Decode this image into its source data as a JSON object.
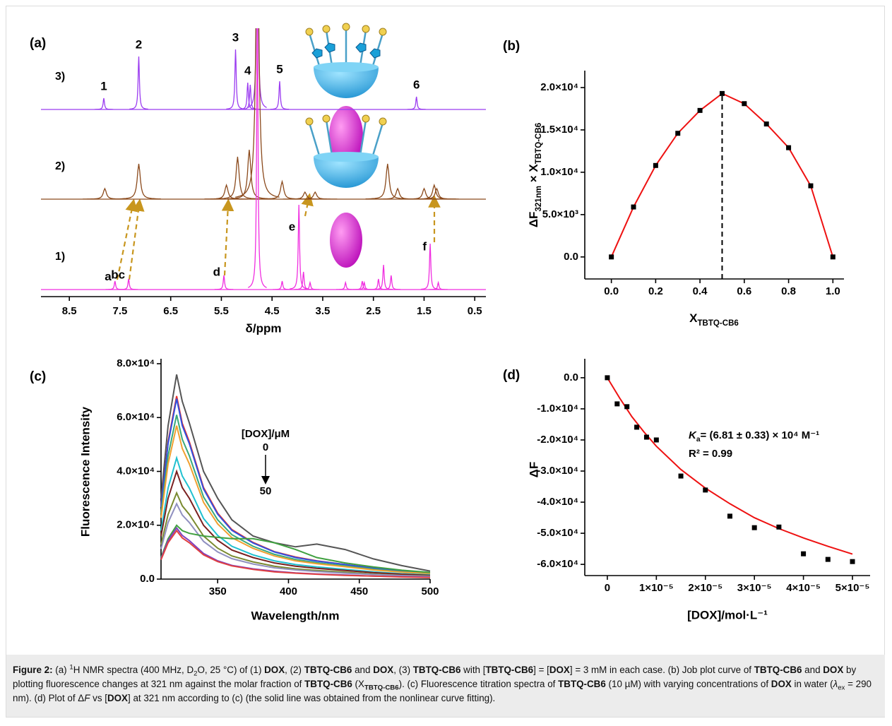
{
  "chart_data": [
    {
      "type": "nmr",
      "panel_label": "(a)",
      "xlabel": "δ/ppm",
      "xlim": [
        9.06,
        0.28
      ],
      "xticks": [
        8.5,
        7.5,
        6.5,
        5.5,
        4.5,
        3.5,
        2.5,
        1.5,
        0.5
      ],
      "series": [
        {
          "name": "3)",
          "color": "#9b3cf0",
          "label_color": "#e8141c",
          "peaks": [
            7.82,
            7.13,
            5.22,
            4.98,
            4.93,
            4.79,
            4.35,
            1.65
          ],
          "intensities": [
            16,
            75,
            85,
            38,
            35,
            400,
            40,
            18
          ],
          "labels": [
            "1",
            "2",
            "3",
            "4",
            null,
            null,
            "5",
            "6"
          ]
        },
        {
          "name": "2)",
          "color": "#8b4a1c",
          "peaks": [
            7.8,
            7.13,
            5.4,
            5.18,
            4.95,
            4.79,
            4.3,
            3.85,
            3.65,
            2.22,
            2.02,
            1.5,
            1.3,
            1.25
          ],
          "intensities": [
            15,
            50,
            20,
            60,
            70,
            400,
            25,
            10,
            10,
            50,
            15,
            15,
            20,
            15
          ]
        },
        {
          "name": "1)",
          "color": "#f02ee0",
          "label_color": "#b8642a",
          "peaks": [
            7.6,
            7.33,
            5.45,
            4.79,
            4.3,
            3.97,
            3.88,
            3.75,
            3.05,
            2.72,
            2.68,
            2.4,
            2.3,
            2.15,
            1.38,
            1.22
          ],
          "intensities": [
            12,
            15,
            20,
            400,
            12,
            120,
            25,
            10,
            10,
            12,
            10,
            15,
            35,
            20,
            65,
            10
          ],
          "labels": [
            "a",
            "bc",
            "d",
            null,
            null,
            "e",
            null,
            null,
            null,
            null,
            null,
            null,
            null,
            null,
            "f",
            null
          ]
        }
      ]
    },
    {
      "type": "scatter",
      "panel_label": "(b)",
      "xlabel": [
        {
          "text": "X"
        },
        {
          "text": "TBTQ-CB6",
          "sub": true
        }
      ],
      "ylabel": [
        {
          "text": "ΔF"
        },
        {
          "text": "321nm",
          "sub": true
        },
        {
          "text": " × X"
        },
        {
          "text": "TBTQ-CB6",
          "sub": true
        }
      ],
      "x": [
        0,
        0.1,
        0.2,
        0.3,
        0.4,
        0.5,
        0.6,
        0.7,
        0.8,
        0.9,
        1
      ],
      "values": [
        0,
        5900,
        10800,
        14600,
        17300,
        19300,
        18100,
        15700,
        12900,
        8400,
        0
      ],
      "color": "#000000",
      "line_color": "#ee1111",
      "vline": 0.5,
      "xlim": [
        -0.12,
        1.05
      ],
      "xticks": [
        {
          "value": 0,
          "label": "0.0"
        },
        0.2,
        0.4,
        0.6,
        0.8,
        {
          "value": 1,
          "label": "1.0"
        }
      ],
      "ylim": [
        -2600,
        22000
      ],
      "yticks": [
        {
          "value": 0,
          "label": "0.0"
        },
        {
          "value": 5000,
          "label": "5.0×10³"
        },
        {
          "value": 10000,
          "label": "1.0×10⁴"
        },
        {
          "value": 15000,
          "label": "1.5×10⁴"
        },
        {
          "value": 20000,
          "label": "2.0×10⁴"
        }
      ]
    },
    {
      "type": "line",
      "panel_label": "(c)",
      "xlabel": "Wavelength/nm",
      "ylabel": "Fluorescence Intensity",
      "legend_title": "[DOX]/μM",
      "legend_range": [
        0,
        50
      ],
      "x": [
        310,
        315,
        321,
        325,
        330,
        340,
        350,
        360,
        375,
        390,
        405,
        420,
        440,
        460,
        480,
        500
      ],
      "series": [
        {
          "color": "#555555",
          "values": [
            30000,
            57000,
            76000,
            66000,
            58000,
            40000,
            30000,
            22000,
            16000,
            13500,
            12000,
            13000,
            11000,
            7500,
            5000,
            3000
          ]
        },
        {
          "color": "#e8302a",
          "values": [
            27200,
            51000,
            68000,
            57800,
            51000,
            34000,
            24500,
            18400,
            13600,
            10200,
            8200,
            6800,
            5400,
            4100,
            3100,
            2400
          ]
        },
        {
          "color": "#3050e0",
          "values": [
            26800,
            50300,
            67000,
            57000,
            50300,
            33500,
            24100,
            18100,
            13400,
            10100,
            8000,
            6700,
            5400,
            4000,
            3000,
            2300
          ]
        },
        {
          "color": "#3aa87a",
          "values": [
            24400,
            45800,
            61000,
            51900,
            45800,
            30500,
            22000,
            16500,
            12200,
            9200,
            7300,
            6100,
            4900,
            3700,
            2700,
            2100
          ]
        },
        {
          "color": "#f0a030",
          "values": [
            22800,
            42800,
            57000,
            48500,
            42800,
            28500,
            20500,
            15400,
            11400,
            8600,
            6800,
            5700,
            4600,
            3400,
            2600,
            2000
          ]
        },
        {
          "color": "#20c0d0",
          "values": [
            18000,
            33800,
            45000,
            38300,
            33800,
            22500,
            16200,
            12200,
            9000,
            6800,
            5400,
            4500,
            3600,
            2700,
            2000,
            1600
          ]
        },
        {
          "color": "#7a2020",
          "values": [
            16000,
            30000,
            40000,
            34000,
            30000,
            20000,
            14400,
            10800,
            8000,
            6000,
            4800,
            4000,
            3200,
            2400,
            1800,
            1400
          ]
        },
        {
          "color": "#7a8a30",
          "values": [
            12800,
            24000,
            32000,
            27200,
            24000,
            16000,
            11500,
            8600,
            6400,
            4800,
            3800,
            3200,
            2600,
            1900,
            1400,
            1100
          ]
        },
        {
          "color": "#9090c0",
          "values": [
            11200,
            21000,
            28000,
            23800,
            21000,
            14000,
            10100,
            7600,
            5600,
            4200,
            3400,
            2800,
            2200,
            1700,
            1300,
            1000
          ]
        },
        {
          "color": "#40a040",
          "values": [
            8000,
            15000,
            20000,
            18000,
            17000,
            16000,
            15500,
            15000,
            15000,
            13500,
            11000,
            8000,
            6000,
            4500,
            3300,
            2500
          ]
        },
        {
          "color": "#8040c0",
          "values": [
            7600,
            14300,
            19000,
            16200,
            14300,
            9500,
            6800,
            5100,
            3800,
            2900,
            2300,
            1900,
            1500,
            1100,
            900,
            700
          ]
        },
        {
          "color": "#e04040",
          "values": [
            7200,
            13500,
            18000,
            15300,
            13500,
            9000,
            6500,
            4900,
            3600,
            2700,
            2200,
            1800,
            1400,
            1100,
            800,
            600
          ]
        }
      ],
      "xlim": [
        310,
        500
      ],
      "xticks": [
        350,
        400,
        450,
        500
      ],
      "ylim": [
        0,
        80000
      ],
      "yticks": [
        {
          "value": 0,
          "label": "0.0"
        },
        {
          "value": 20000,
          "label": "2.0×10⁴"
        },
        {
          "value": 40000,
          "label": "4.0×10⁴"
        },
        {
          "value": 60000,
          "label": "6.0×10⁴"
        },
        {
          "value": 80000,
          "label": "8.0×10⁴"
        }
      ]
    },
    {
      "type": "scatter",
      "panel_label": "(d)",
      "xlabel": "[DOX]/mol·L⁻¹",
      "ylabel": "ΔF",
      "x": [
        0,
        2e-06,
        4e-06,
        6e-06,
        8e-06,
        1e-05,
        1.5e-05,
        2e-05,
        2.5e-05,
        3e-05,
        3.5e-05,
        4e-05,
        4.5e-05,
        5e-05
      ],
      "values": [
        0,
        -8400,
        -9300,
        -15900,
        -19100,
        -20000,
        -31600,
        -36100,
        -44500,
        -48200,
        -48000,
        -56600,
        -58400,
        -59100
      ],
      "color": "#000000",
      "fit": {
        "color": "#ee1111",
        "x": [
          0,
          2.5e-06,
          5e-06,
          7.5e-06,
          1e-05,
          1.5e-05,
          2e-05,
          2.5e-05,
          3e-05,
          3.5e-05,
          4e-05,
          4.5e-05,
          5e-05
        ],
        "values": [
          0,
          -6500,
          -12500,
          -17500,
          -22000,
          -29500,
          -35500,
          -40500,
          -45000,
          -48500,
          -51500,
          -54200,
          -56700
        ]
      },
      "annotations": [
        [
          {
            "text": "K",
            "italic": true
          },
          {
            "text": "a",
            "sub": true
          },
          {
            "text": "= (6.81 ± 0.33) × 10⁴ M⁻¹"
          }
        ],
        [
          {
            "text": "R² = 0.99"
          }
        ]
      ],
      "xlim": [
        -4.6e-06,
        5.36e-05
      ],
      "xticks": [
        0,
        {
          "value": 1e-05,
          "label": "1×10⁻⁵"
        },
        {
          "value": 2e-05,
          "label": "2×10⁻⁵"
        },
        {
          "value": 3e-05,
          "label": "3×10⁻⁵"
        },
        {
          "value": 4e-05,
          "label": "4×10⁻⁵"
        },
        {
          "value": 5e-05,
          "label": "5×10⁻⁵"
        }
      ],
      "ylim": [
        -63600,
        6100
      ],
      "yticks": [
        {
          "value": 0,
          "label": "0.0"
        },
        {
          "value": -10000,
          "label": "-1.0×10⁴"
        },
        {
          "value": -20000,
          "label": "-2.0×10⁴"
        },
        {
          "value": -30000,
          "label": "-3.0×10⁴"
        },
        {
          "value": -40000,
          "label": "-4.0×10⁴"
        },
        {
          "value": -50000,
          "label": "-5.0×10⁴"
        },
        {
          "value": -60000,
          "label": "-6.0×10⁴"
        }
      ]
    }
  ],
  "caption": [
    {
      "text": "Figure 2:",
      "b": true
    },
    {
      "text": " (a) "
    },
    {
      "text": "1",
      "sup": true
    },
    {
      "text": "H NMR spectra (400 MHz, D"
    },
    {
      "text": "2",
      "sub": true
    },
    {
      "text": "O, 25 °C) of (1) "
    },
    {
      "text": "DOX",
      "b": true
    },
    {
      "text": ", (2) "
    },
    {
      "text": "TBTQ-CB6",
      "b": true
    },
    {
      "text": " and "
    },
    {
      "text": "DOX",
      "b": true
    },
    {
      "text": ", (3) "
    },
    {
      "text": "TBTQ-CB6",
      "b": true
    },
    {
      "text": " with ["
    },
    {
      "text": "TBTQ-CB6",
      "b": true
    },
    {
      "text": "] = ["
    },
    {
      "text": "DOX",
      "b": true
    },
    {
      "text": "] = 3 mM in each case. (b) Job plot curve of "
    },
    {
      "text": "TBTQ-CB6",
      "b": true
    },
    {
      "text": " and "
    },
    {
      "text": "DOX",
      "b": true
    },
    {
      "text": " by plotting fluorescence changes at 321 nm against the molar fraction of "
    },
    {
      "text": "TBTQ-CB6",
      "b": true
    },
    {
      "text": " (X"
    },
    {
      "text": "TBTQ-CB6",
      "b": true,
      "sub": true
    },
    {
      "text": "). (c) Fluorescence titration spectra of "
    },
    {
      "text": "TBTQ-CB6",
      "b": true
    },
    {
      "text": " (10 µM) with varying concentrations of "
    },
    {
      "text": "DOX",
      "b": true
    },
    {
      "text": " in water ("
    },
    {
      "text": "λ",
      "i": true
    },
    {
      "text": "ex",
      "sub": true
    },
    {
      "text": " = 290 nm). (d) Plot of Δ"
    },
    {
      "text": "F",
      "i": true
    },
    {
      "text": " vs ["
    },
    {
      "text": "DOX",
      "b": true
    },
    {
      "text": "] at 321 nm according to (c) (the solid line was obtained from the nonlinear curve fitting)."
    }
  ]
}
